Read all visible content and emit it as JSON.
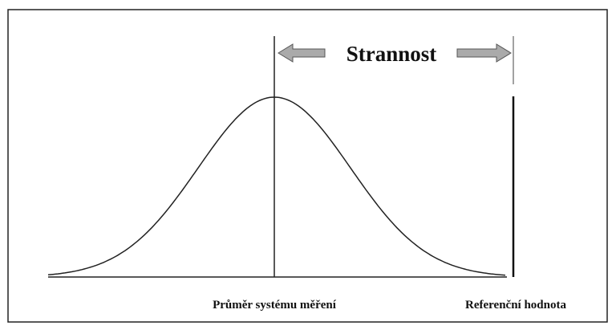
{
  "title": "Strannost",
  "labels": {
    "mean": "Průměr systému měření",
    "reference": "Referenční hodnota"
  }
}
